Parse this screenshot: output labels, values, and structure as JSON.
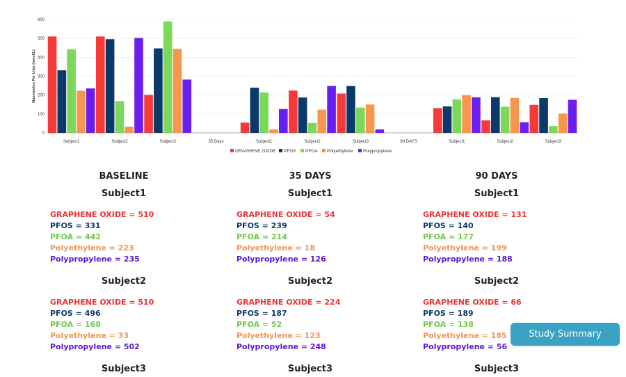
{
  "chart_data": {
    "type": "bar",
    "ylabel": "Nanomoles Per Liter (nmol/L)",
    "ylim": [
      0,
      600
    ],
    "yticks": [
      0,
      100,
      200,
      300,
      400,
      500,
      600
    ],
    "categories": [
      "Subject1",
      "Subject2",
      "Subject3",
      "35 Days",
      "Subject1",
      "Subject2",
      "Subject3",
      "90 DAYS",
      "Subject1",
      "Subject2",
      "Subject3"
    ],
    "series": [
      {
        "name": "GRAPHENE OXIDE",
        "color": "#f63a3a",
        "values": [
          510,
          510,
          201,
          null,
          54,
          224,
          208,
          null,
          131,
          66,
          148
        ]
      },
      {
        "name": "PFOS",
        "color": "#0b3a6a",
        "values": [
          331,
          496,
          447,
          null,
          239,
          187,
          248,
          null,
          140,
          189,
          184
        ]
      },
      {
        "name": "PFOA",
        "color": "#7bd85a",
        "values": [
          442,
          168,
          590,
          null,
          214,
          52,
          134,
          null,
          177,
          138,
          36
        ]
      },
      {
        "name": "Polyethylene",
        "color": "#f7964f",
        "values": [
          223,
          33,
          445,
          null,
          18,
          123,
          150,
          null,
          199,
          185,
          102
        ]
      },
      {
        "name": "Polypropylene",
        "color": "#6a1ef0",
        "values": [
          235,
          502,
          282,
          null,
          126,
          248,
          18,
          null,
          188,
          56,
          175
        ]
      }
    ]
  },
  "columns": [
    {
      "title": "BASELINE",
      "subjects": [
        {
          "name": "Subject1",
          "lines": [
            "GRAPHENE OXIDE = 510",
            "PFOS = 331",
            "PFOA = 442",
            "Polyethylene = 223",
            "Polypropylene = 235"
          ]
        },
        {
          "name": "Subject2",
          "lines": [
            "GRAPHENE OXIDE = 510",
            "PFOS = 496",
            "PFOA = 168",
            "Polyethylene = 33",
            "Polypropylene = 502"
          ]
        },
        {
          "name": "Subject3"
        }
      ]
    },
    {
      "title": "35 DAYS",
      "subjects": [
        {
          "name": "Subject1",
          "lines": [
            "GRAPHENE OXIDE = 54",
            "PFOS = 239",
            "PFOA = 214",
            "Polyethylene = 18",
            "Polypropylene = 126"
          ]
        },
        {
          "name": "Subject2",
          "lines": [
            "GRAPHENE OXIDE = 224",
            "PFOS = 187",
            "PFOA = 52",
            "Polyethylene = 123",
            "Polypropylene = 248"
          ]
        },
        {
          "name": "Subject3"
        }
      ]
    },
    {
      "title": "90 DAYS",
      "subjects": [
        {
          "name": "Subject1",
          "lines": [
            "GRAPHENE OXIDE = 131",
            "PFOS = 140",
            "PFOA = 177",
            "Polyethylene = 199",
            "Polypropylene = 188"
          ]
        },
        {
          "name": "Subject2",
          "lines": [
            "GRAPHENE OXIDE = 66",
            "PFOS = 189",
            "PFOA = 138",
            "Polyethylene = 185",
            "Polypropylene = 56"
          ]
        },
        {
          "name": "Subject3"
        }
      ]
    }
  ],
  "summary_button": "Study Summary"
}
